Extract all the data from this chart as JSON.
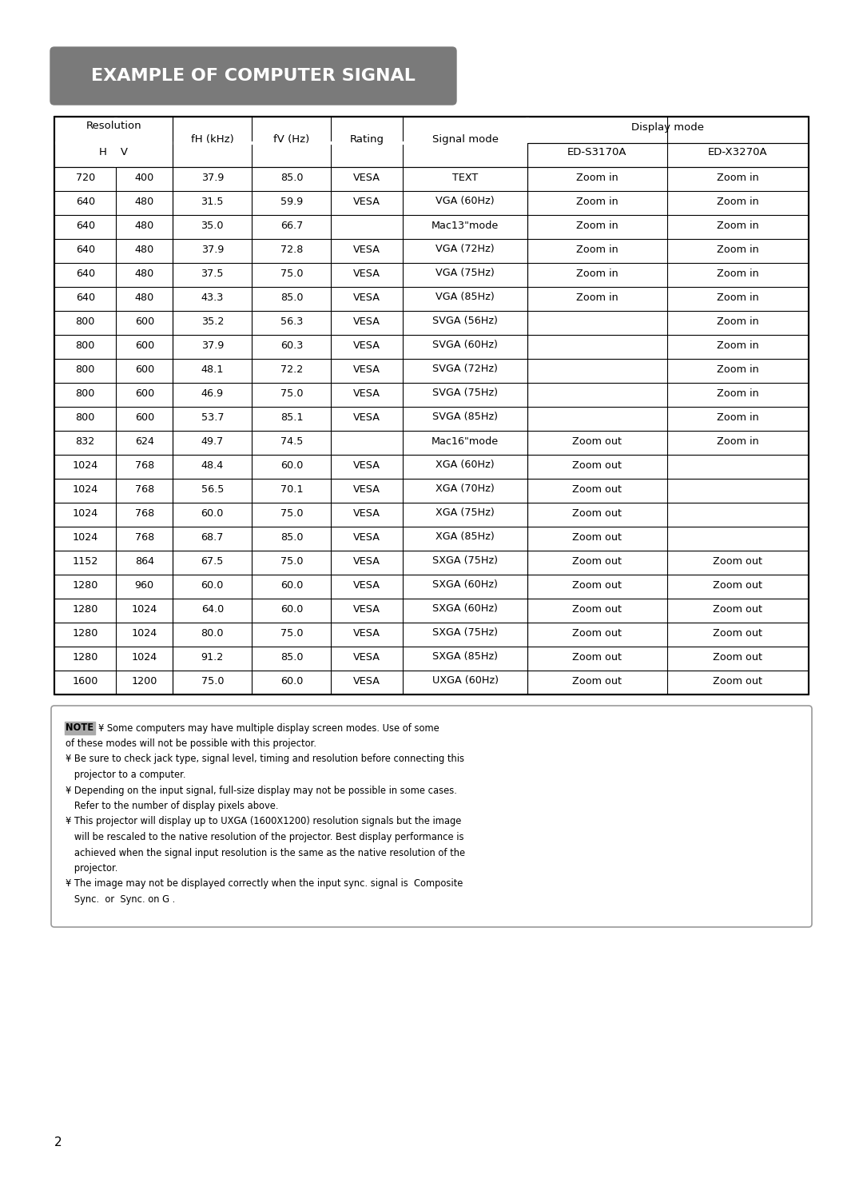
{
  "title": "EXAMPLE OF COMPUTER SIGNAL",
  "title_bg": "#7a7a7a",
  "title_color": "#ffffff",
  "sub_headers": {
    "display_mode": "Display mode",
    "ed1": "ED-S3170A",
    "ed2": "ED-X3270A"
  },
  "rows": [
    [
      "720",
      "400",
      "37.9",
      "85.0",
      "VESA",
      "TEXT",
      "Zoom in",
      "Zoom in"
    ],
    [
      "640",
      "480",
      "31.5",
      "59.9",
      "VESA",
      "VGA (60Hz)",
      "Zoom in",
      "Zoom in"
    ],
    [
      "640",
      "480",
      "35.0",
      "66.7",
      "",
      "Mac13\"mode",
      "Zoom in",
      "Zoom in"
    ],
    [
      "640",
      "480",
      "37.9",
      "72.8",
      "VESA",
      "VGA (72Hz)",
      "Zoom in",
      "Zoom in"
    ],
    [
      "640",
      "480",
      "37.5",
      "75.0",
      "VESA",
      "VGA (75Hz)",
      "Zoom in",
      "Zoom in"
    ],
    [
      "640",
      "480",
      "43.3",
      "85.0",
      "VESA",
      "VGA (85Hz)",
      "Zoom in",
      "Zoom in"
    ],
    [
      "800",
      "600",
      "35.2",
      "56.3",
      "VESA",
      "SVGA (56Hz)",
      "",
      "Zoom in"
    ],
    [
      "800",
      "600",
      "37.9",
      "60.3",
      "VESA",
      "SVGA (60Hz)",
      "",
      "Zoom in"
    ],
    [
      "800",
      "600",
      "48.1",
      "72.2",
      "VESA",
      "SVGA (72Hz)",
      "",
      "Zoom in"
    ],
    [
      "800",
      "600",
      "46.9",
      "75.0",
      "VESA",
      "SVGA (75Hz)",
      "",
      "Zoom in"
    ],
    [
      "800",
      "600",
      "53.7",
      "85.1",
      "VESA",
      "SVGA (85Hz)",
      "",
      "Zoom in"
    ],
    [
      "832",
      "624",
      "49.7",
      "74.5",
      "",
      "Mac16\"mode",
      "Zoom out",
      "Zoom in"
    ],
    [
      "1024",
      "768",
      "48.4",
      "60.0",
      "VESA",
      "XGA (60Hz)",
      "Zoom out",
      ""
    ],
    [
      "1024",
      "768",
      "56.5",
      "70.1",
      "VESA",
      "XGA (70Hz)",
      "Zoom out",
      ""
    ],
    [
      "1024",
      "768",
      "60.0",
      "75.0",
      "VESA",
      "XGA (75Hz)",
      "Zoom out",
      ""
    ],
    [
      "1024",
      "768",
      "68.7",
      "85.0",
      "VESA",
      "XGA (85Hz)",
      "Zoom out",
      ""
    ],
    [
      "1152",
      "864",
      "67.5",
      "75.0",
      "VESA",
      "SXGA (75Hz)",
      "Zoom out",
      "Zoom out"
    ],
    [
      "1280",
      "960",
      "60.0",
      "60.0",
      "VESA",
      "SXGA (60Hz)",
      "Zoom out",
      "Zoom out"
    ],
    [
      "1280",
      "1024",
      "64.0",
      "60.0",
      "VESA",
      "SXGA (60Hz)",
      "Zoom out",
      "Zoom out"
    ],
    [
      "1280",
      "1024",
      "80.0",
      "75.0",
      "VESA",
      "SXGA (75Hz)",
      "Zoom out",
      "Zoom out"
    ],
    [
      "1280",
      "1024",
      "91.2",
      "85.0",
      "VESA",
      "SXGA (85Hz)",
      "Zoom out",
      "Zoom out"
    ],
    [
      "1600",
      "1200",
      "75.0",
      "60.0",
      "VESA",
      "UXGA (60Hz)",
      "Zoom out",
      "Zoom out"
    ]
  ],
  "note_lines": [
    {
      "type": "first",
      "note_label": "NOTE",
      "text": "¥ Some computers may have multiple display screen modes. Use of some"
    },
    {
      "type": "cont",
      "text": "of these modes will not be possible with this projector."
    },
    {
      "type": "bullet",
      "text": "¥ Be sure to check jack type, signal level, timing and resolution before connecting this"
    },
    {
      "type": "cont",
      "text": "   projector to a computer."
    },
    {
      "type": "bullet",
      "text": "¥ Depending on the input signal, full-size display may not be possible in some cases."
    },
    {
      "type": "cont",
      "text": "   Refer to the number of display pixels above."
    },
    {
      "type": "bullet",
      "text": "¥ This projector will display up to UXGA (1600X1200) resolution signals but the image"
    },
    {
      "type": "cont",
      "text": "   will be rescaled to the native resolution of the projector. Best display performance is"
    },
    {
      "type": "cont",
      "text": "   achieved when the signal input resolution is the same as the native resolution of the"
    },
    {
      "type": "cont",
      "text": "   projector."
    },
    {
      "type": "bullet",
      "text": "¥ The image may not be displayed correctly when the input sync. signal is  Composite"
    },
    {
      "type": "cont",
      "text": "   Sync.  or  Sync. on G ."
    }
  ],
  "page_number": "2",
  "bg_color": "#ffffff",
  "table_border_color": "#000000",
  "text_color": "#000000",
  "note_border_color": "#999999",
  "note_label_bg": "#aaaaaa"
}
